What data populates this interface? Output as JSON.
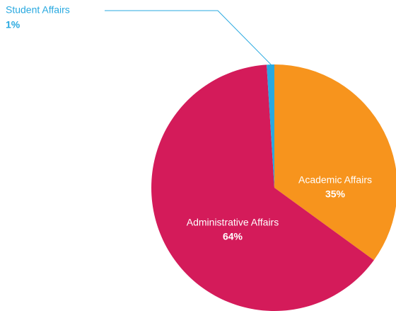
{
  "chart_data": {
    "type": "pie",
    "categories": [
      "Academic Affairs",
      "Administrative Affairs",
      "Student Affairs"
    ],
    "values": [
      35,
      64,
      1
    ],
    "value_labels": [
      "35%",
      "64%",
      "1%"
    ],
    "colors": [
      "#f7941d",
      "#d41b5a",
      "#29a9e0"
    ]
  }
}
